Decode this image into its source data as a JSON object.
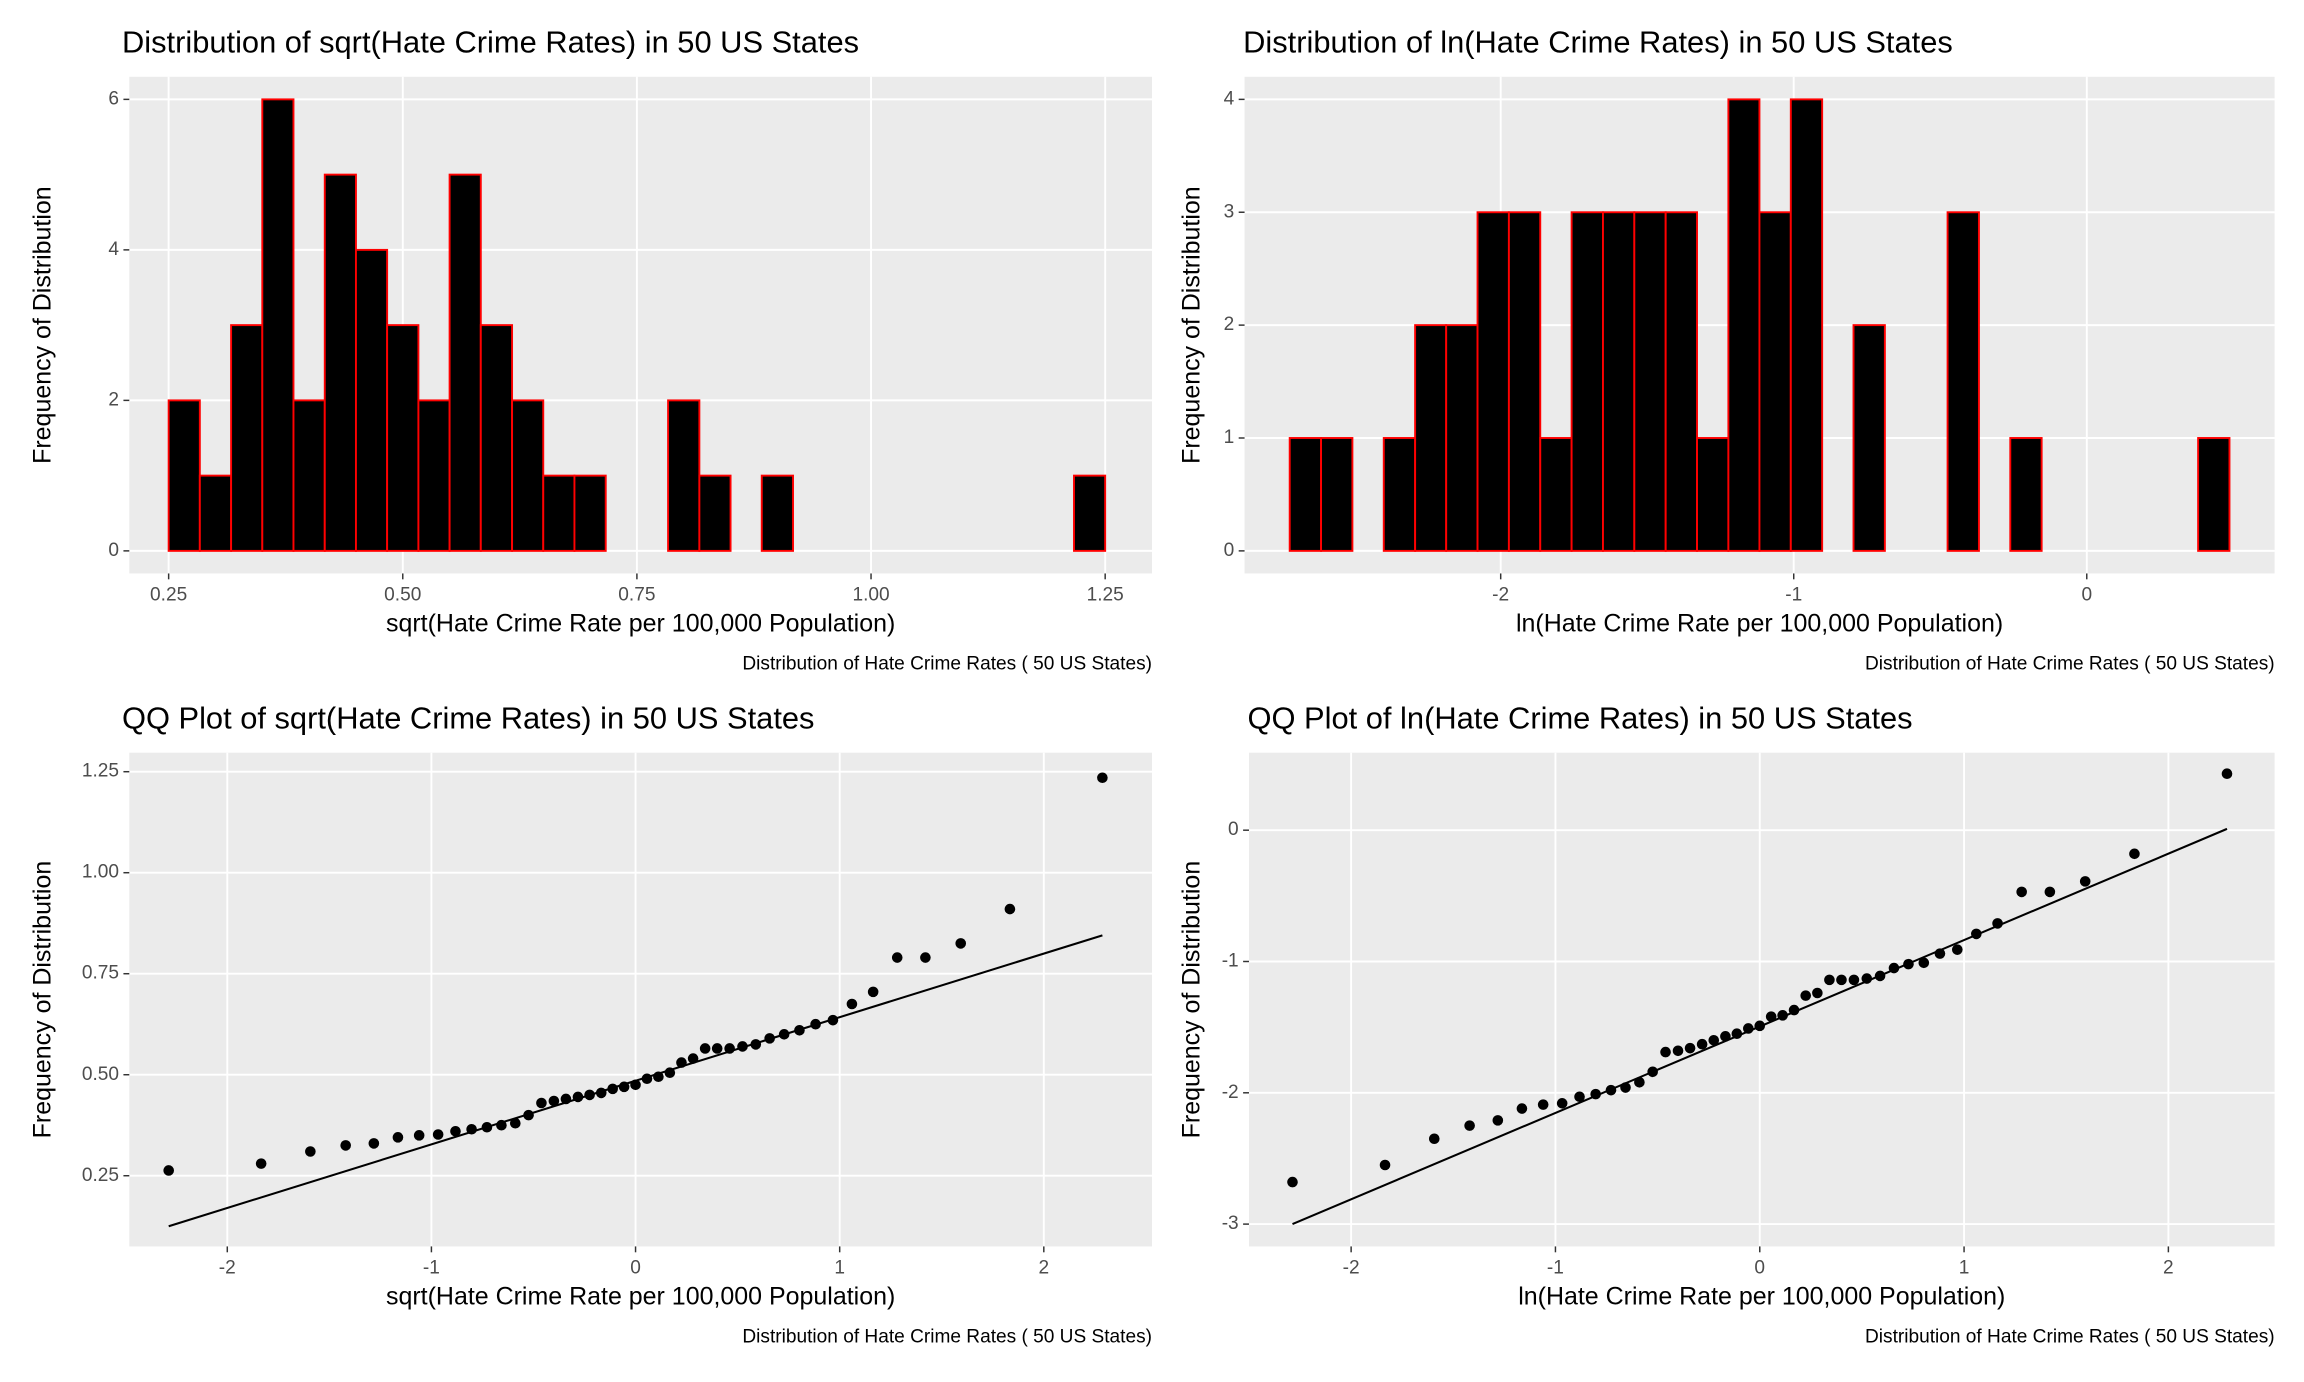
{
  "chart_data": [
    {
      "type": "histogram",
      "title": "Distribution of sqrt(Hate Crime Rates) in 50 US States",
      "x_label": "sqrt(Hate Crime Rate per 100,000 Population)",
      "y_label": "Frequency of Distribution",
      "caption": "Distribution of Hate Crime Rates ( 50 US States)",
      "bins": [
        0.25,
        0.2833,
        0.3167,
        0.35,
        0.3833,
        0.4167,
        0.45,
        0.4833,
        0.5167,
        0.55,
        0.5833,
        0.6167,
        0.65,
        0.6833,
        0.7167,
        0.75,
        0.7833,
        0.8167,
        0.85,
        0.8833,
        0.9167,
        0.95,
        0.9833,
        1.0167,
        1.05,
        1.0833,
        1.1167,
        1.15,
        1.1833,
        1.2167,
        1.25
      ],
      "counts": [
        2,
        1,
        3,
        6,
        2,
        5,
        4,
        3,
        2,
        5,
        3,
        2,
        1,
        1,
        0,
        0,
        2,
        1,
        0,
        1,
        0,
        0,
        0,
        0,
        0,
        0,
        0,
        0,
        0,
        1
      ],
      "fill": "#000000",
      "edge_color": "#ff0000",
      "xlim": [
        0.208,
        1.3
      ],
      "xticks": [
        0.25,
        {
          "value": 0.5,
          "label": "0.50"
        },
        0.75,
        {
          "value": 1,
          "label": "1.00"
        },
        1.25
      ],
      "ylim": [
        -0.3,
        6.3
      ],
      "yticks": [
        0,
        2,
        4,
        6
      ],
      "grid": true
    },
    {
      "type": "histogram",
      "title": "Distribution of ln(Hate Crime Rates) in 50 US States",
      "x_label": "ln(Hate Crime Rate per 100,000 Population)",
      "y_label": "Frequency of Distribution",
      "caption": "Distribution of Hate Crime Rates ( 50 US States)",
      "bins": [
        -2.72,
        -2.613,
        -2.506,
        -2.399,
        -2.292,
        -2.186,
        -2.079,
        -1.972,
        -1.865,
        -1.758,
        -1.651,
        -1.544,
        -1.437,
        -1.33,
        -1.223,
        -1.117,
        -1.01,
        -0.903,
        -0.796,
        -0.689,
        -0.582,
        -0.475,
        -0.368,
        -0.261,
        -0.154,
        -0.048,
        0.059,
        0.166,
        0.273,
        0.38,
        0.487
      ],
      "counts": [
        1,
        1,
        0,
        1,
        2,
        2,
        3,
        3,
        1,
        3,
        3,
        3,
        3,
        1,
        4,
        3,
        4,
        0,
        2,
        0,
        0,
        3,
        0,
        1,
        0,
        0,
        0,
        0,
        0,
        1
      ],
      "fill": "#000000",
      "edge_color": "#ff0000",
      "xlim": [
        -2.874,
        0.641
      ],
      "xticks": [
        -2,
        -1,
        0
      ],
      "ylim": [
        -0.2,
        4.2
      ],
      "yticks": [
        0,
        1,
        2,
        3,
        4
      ],
      "grid": true
    },
    {
      "type": "qq",
      "title": "QQ Plot of sqrt(Hate Crime Rates) in 50 US States",
      "x_label": "sqrt(Hate Crime Rate per 100,000 Population)",
      "y_label": "Frequency of Distribution",
      "caption": "Distribution of Hate Crime Rates ( 50 US States)",
      "x": [
        -2.287,
        -1.834,
        -1.593,
        -1.42,
        -1.282,
        -1.164,
        -1.06,
        -0.967,
        -0.882,
        -0.803,
        -0.728,
        -0.657,
        -0.589,
        -0.524,
        -0.461,
        -0.4,
        -0.341,
        -0.282,
        -0.225,
        -0.168,
        -0.112,
        -0.056,
        0,
        0.056,
        0.112,
        0.168,
        0.225,
        0.282,
        0.341,
        0.4,
        0.461,
        0.524,
        0.589,
        0.657,
        0.728,
        0.803,
        0.882,
        0.967,
        1.06,
        1.164,
        1.282,
        1.42,
        1.593,
        1.834,
        2.287
      ],
      "values": [
        0.263,
        0.28,
        0.31,
        0.325,
        0.33,
        0.345,
        0.35,
        0.352,
        0.36,
        0.365,
        0.37,
        0.375,
        0.38,
        0.4,
        0.43,
        0.435,
        0.44,
        0.445,
        0.45,
        0.455,
        0.465,
        0.47,
        0.475,
        0.49,
        0.495,
        0.505,
        0.53,
        0.54,
        0.565,
        0.565,
        0.565,
        0.57,
        0.575,
        0.59,
        0.6,
        0.61,
        0.625,
        0.635,
        0.675,
        0.705,
        0.79,
        0.79,
        0.825,
        0.91,
        1.235
      ],
      "line_x": [
        -2.287,
        2.287
      ],
      "line_values": [
        0.125,
        0.845
      ],
      "color": "#000000",
      "xlim": [
        -2.48,
        2.53
      ],
      "xticks": [
        -2,
        -1,
        0,
        1,
        2
      ],
      "ylim": [
        0.075,
        1.297
      ],
      "yticks": [
        0.25,
        {
          "value": 0.5,
          "label": "0.50"
        },
        0.75,
        {
          "value": 1,
          "label": "1.00"
        },
        1.25
      ],
      "grid": true
    },
    {
      "type": "qq",
      "title": "QQ Plot of ln(Hate Crime Rates) in 50 US States",
      "x_label": "ln(Hate Crime Rate per 100,000 Population)",
      "y_label": "Frequency of Distribution",
      "caption": "Distribution of Hate Crime Rates ( 50 US States)",
      "x": [
        -2.287,
        -1.834,
        -1.593,
        -1.42,
        -1.282,
        -1.164,
        -1.06,
        -0.967,
        -0.882,
        -0.803,
        -0.728,
        -0.657,
        -0.589,
        -0.524,
        -0.461,
        -0.4,
        -0.341,
        -0.282,
        -0.225,
        -0.168,
        -0.112,
        -0.056,
        0,
        0.056,
        0.112,
        0.168,
        0.225,
        0.282,
        0.341,
        0.4,
        0.461,
        0.524,
        0.589,
        0.657,
        0.728,
        0.803,
        0.882,
        0.967,
        1.06,
        1.164,
        1.282,
        1.42,
        1.593,
        1.834,
        2.287
      ],
      "values": [
        -2.68,
        -2.55,
        -2.35,
        -2.25,
        -2.21,
        -2.12,
        -2.09,
        -2.08,
        -2.03,
        -2.01,
        -1.98,
        -1.96,
        -1.92,
        -1.84,
        -1.69,
        -1.68,
        -1.66,
        -1.63,
        -1.6,
        -1.57,
        -1.55,
        -1.51,
        -1.49,
        -1.42,
        -1.41,
        -1.37,
        -1.26,
        -1.24,
        -1.14,
        -1.14,
        -1.14,
        -1.13,
        -1.11,
        -1.05,
        -1.02,
        -1.01,
        -0.94,
        -0.91,
        -0.79,
        -0.71,
        -0.47,
        -0.47,
        -0.39,
        -0.18,
        0.43
      ],
      "line_x": [
        -2.287,
        2.287
      ],
      "line_values": [
        -3.0,
        0.01
      ],
      "color": "#000000",
      "xlim": [
        -2.5,
        2.52
      ],
      "xticks": [
        -2,
        -1,
        0,
        1,
        2
      ],
      "ylim": [
        -3.17,
        0.59
      ],
      "yticks": [
        -3,
        -2,
        -1,
        0
      ],
      "grid": true
    }
  ]
}
